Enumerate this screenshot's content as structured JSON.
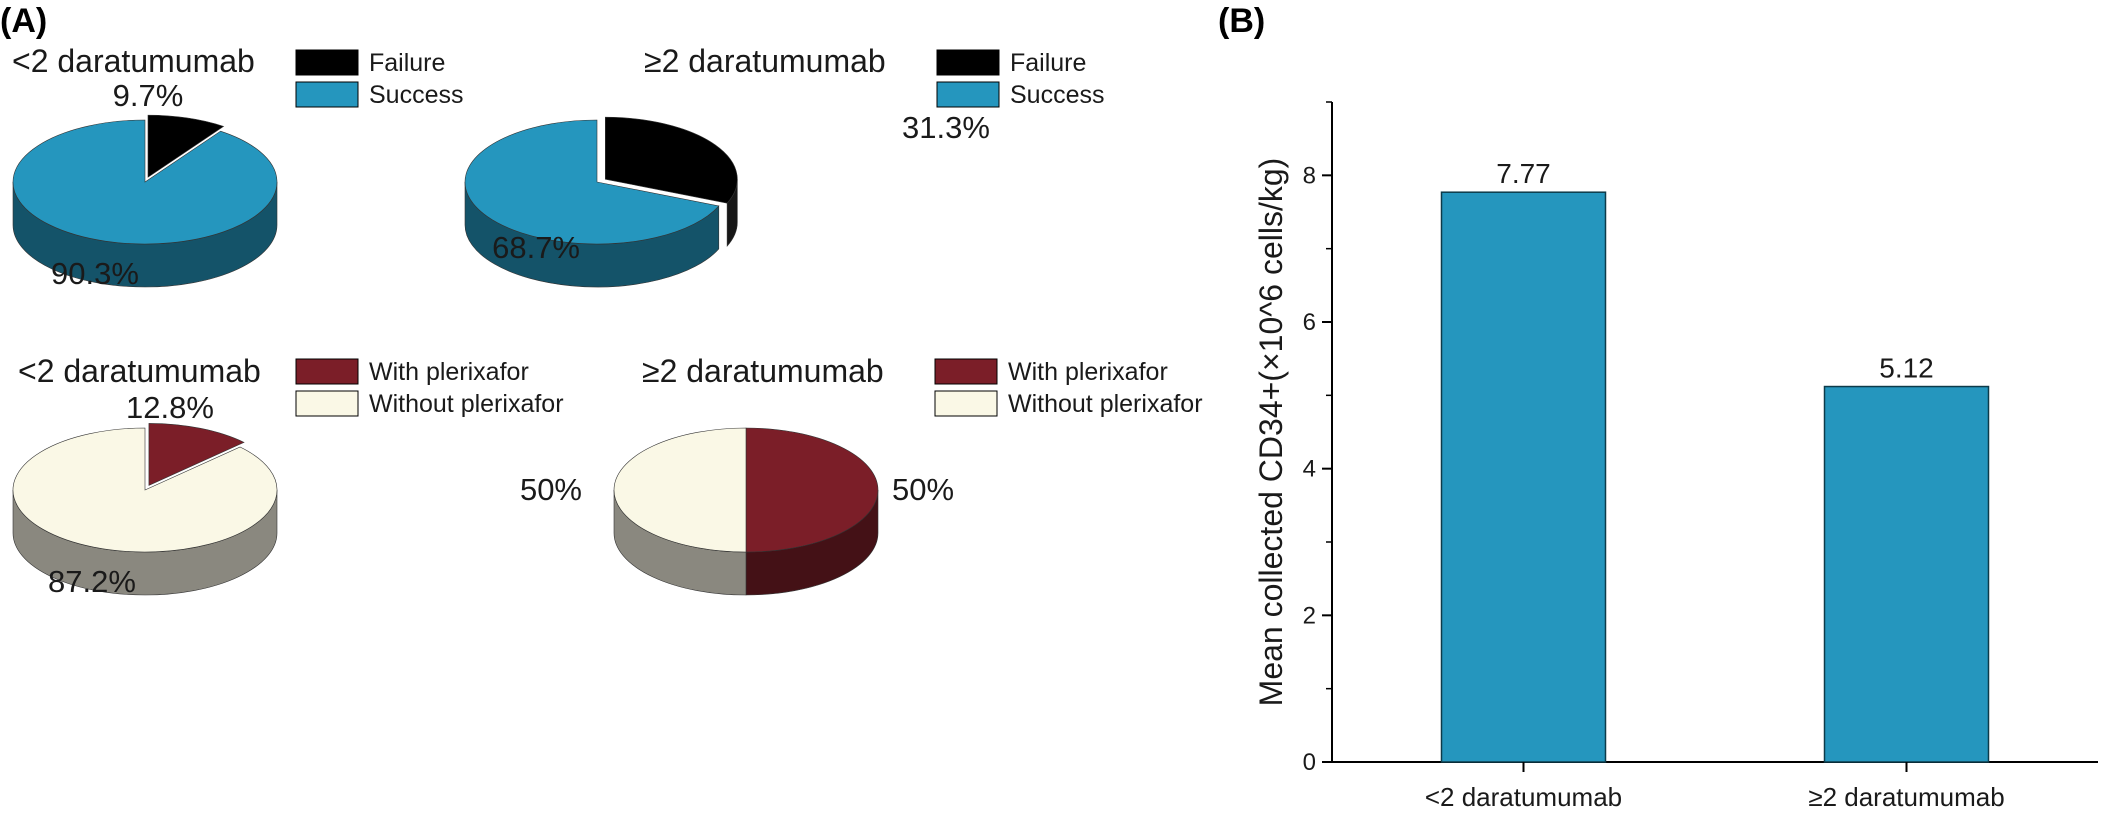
{
  "panels": {
    "a": "(A)",
    "b": "(B)"
  },
  "chart_data": [
    {
      "type": "pie",
      "title": "<2 daratumumab",
      "slices": [
        {
          "label": "Failure",
          "value": 9.7,
          "text": "9.7%",
          "color": "#000000"
        },
        {
          "label": "Success",
          "value": 90.3,
          "text": "90.3%",
          "color": "#2596be"
        }
      ],
      "legend": "right of title"
    },
    {
      "type": "pie",
      "title": "≥2 daratumumab",
      "slices": [
        {
          "label": "Failure",
          "value": 31.3,
          "text": "31.3%",
          "color": "#000000"
        },
        {
          "label": "Success",
          "value": 68.7,
          "text": "68.7%",
          "color": "#2596be"
        }
      ],
      "legend": "right of title"
    },
    {
      "type": "pie",
      "title": "<2 daratumumab",
      "slices": [
        {
          "label": "With plerixafor",
          "value": 12.8,
          "text": "12.8%",
          "color": "#7b1e28"
        },
        {
          "label": "Without plerixafor",
          "value": 87.2,
          "text": "87.2%",
          "color": "#faf8e6"
        }
      ],
      "legend": "right of title"
    },
    {
      "type": "pie",
      "title": "≥2 daratumumab",
      "slices": [
        {
          "label": "With plerixafor",
          "value": 50,
          "text": "50%",
          "color": "#7b1e28"
        },
        {
          "label": "Without plerixafor",
          "value": 50,
          "text": "50%",
          "color": "#faf8e6"
        }
      ],
      "legend": "right of title"
    },
    {
      "type": "bar",
      "categories": [
        "<2 daratumumab",
        "≥2 daratumumab"
      ],
      "values": [
        7.77,
        5.12
      ],
      "value_labels": [
        "7.77",
        "5.12"
      ],
      "ylabel": "Mean collected CD34+(×10^6 cells/kg)",
      "ylim": [
        0,
        9
      ],
      "yticks": [
        "0",
        "2",
        "4",
        "6",
        "8"
      ],
      "grid": false,
      "color": "#2596be"
    }
  ]
}
